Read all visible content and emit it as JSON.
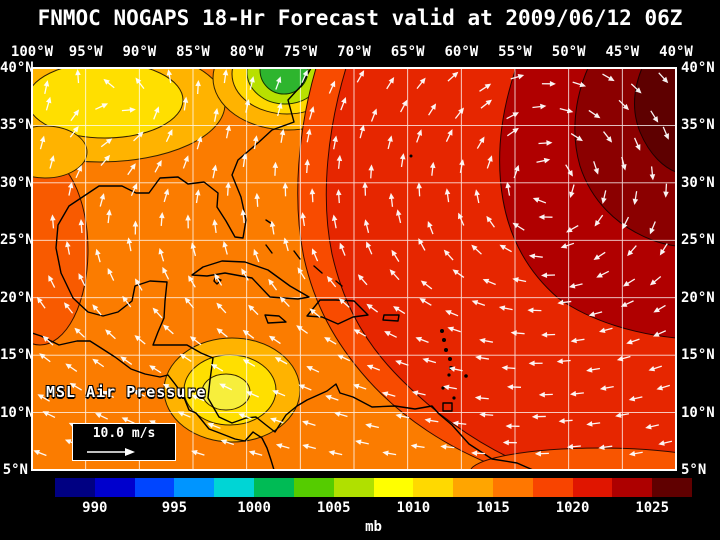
{
  "title": "FNMOC NOGAPS 18-Hr Forecast valid at 2009/06/12 06Z",
  "axes": {
    "lon_labels": [
      "100°W",
      "95°W",
      "90°W",
      "85°W",
      "80°W",
      "75°W",
      "70°W",
      "65°W",
      "60°W",
      "55°W",
      "50°W",
      "45°W",
      "40°W"
    ],
    "lat_labels_left": [
      "40°N",
      "35°N",
      "30°N",
      "25°N",
      "20°N",
      "15°N",
      "10°N",
      "5°N"
    ],
    "lat_labels_right": [
      "40°N",
      "35°N",
      "30°N",
      "25°N",
      "20°N",
      "15°N",
      "10°N",
      "5°N"
    ]
  },
  "map": {
    "field_label": "MSL Air Pressure",
    "wind_legend_label": "10.0 m/s"
  },
  "colorbar": {
    "unit": "mb",
    "ticks": [
      "990",
      "995",
      "1000",
      "1005",
      "1010",
      "1015",
      "1020",
      "1025"
    ],
    "colors": [
      "#000082",
      "#0000cd",
      "#0045ff",
      "#0095ff",
      "#00d5d5",
      "#00bb55",
      "#55cc00",
      "#b0e000",
      "#ffff00",
      "#ffd900",
      "#ffa500",
      "#ff7700",
      "#f84400",
      "#e01500",
      "#ad0000",
      "#600000"
    ]
  },
  "chart_data": {
    "type": "heatmap",
    "title": "FNMOC NOGAPS 18-Hr Forecast valid at 2009/06/12 06Z",
    "source": "FNMOC",
    "model": "NOGAPS",
    "forecast_hour": 18,
    "valid_time": "2009/06/12 06Z",
    "variable": "MSL Air Pressure",
    "unit": "mb",
    "x_axis": {
      "label": "longitude",
      "ticks": [
        "100°W",
        "95°W",
        "90°W",
        "85°W",
        "80°W",
        "75°W",
        "70°W",
        "65°W",
        "60°W",
        "55°W",
        "50°W",
        "45°W",
        "40°W"
      ],
      "interval_deg": 5
    },
    "y_axis": {
      "label": "latitude",
      "ticks": [
        "40°N",
        "35°N",
        "30°N",
        "25°N",
        "20°N",
        "15°N",
        "10°N",
        "5°N"
      ],
      "interval_deg": 5
    },
    "colorbar": {
      "range_mb": [
        987.5,
        1027.5
      ],
      "band_width_mb": 2.5,
      "ticks_mb": [
        990,
        995,
        1000,
        1005,
        1010,
        1015,
        1020,
        1025
      ]
    },
    "wind_reference_vector_m_s": 10.0,
    "overlay": "white wind vectors on 5-degree-style grid, anticyclonic (clockwise) flow around Atlantic high, easterly trade winds south of 20N",
    "pressure_features": [
      {
        "name": "subtropical-high",
        "approx_center": "46°W 34°N",
        "approx_value_mb": 1026,
        "note": "dark maroon core in upper-right corner"
      },
      {
        "name": "mid-atlantic-coast-low",
        "approx_center": "76°W 40°N",
        "approx_value_mb": 1004,
        "note": "green core ringed by yellow at top edge near US east coast"
      },
      {
        "name": "plains-low",
        "approx_center": "92°W 37°N",
        "approx_value_mb": 1008,
        "note": "yellow area upper-left"
      },
      {
        "name": "sw-caribbean-low",
        "approx_center": "81°W 12°N",
        "approx_value_mb": 1008,
        "note": "yellow blob near Central America"
      },
      {
        "name": "background-field",
        "approx_value_mb": 1013,
        "note": "orange over Gulf of Mexico and western Caribbean, red 1016-1020 over central Atlantic"
      }
    ]
  }
}
